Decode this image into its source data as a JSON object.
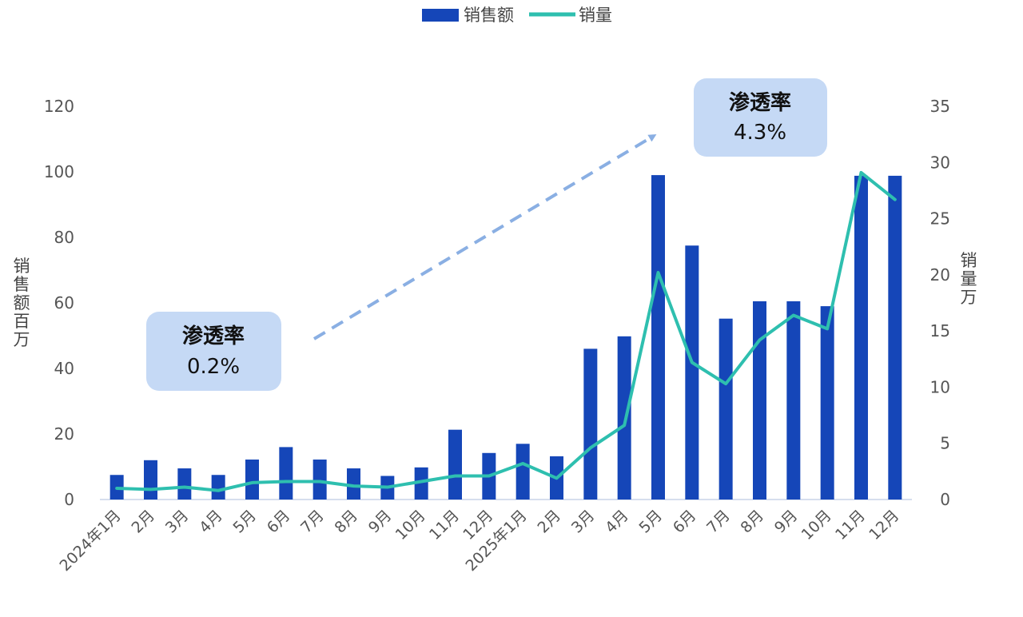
{
  "chart_data": {
    "type": "bar",
    "categories": [
      "2024年1月",
      "2月",
      "3月",
      "4月",
      "5月",
      "6月",
      "7月",
      "8月",
      "9月",
      "10月",
      "11月",
      "12月",
      "2025年1月",
      "2月",
      "3月",
      "4月",
      "5月",
      "6月",
      "7月",
      "8月",
      "9月",
      "10月",
      "11月",
      "12月"
    ],
    "series": [
      {
        "name": "销售额",
        "type": "bar",
        "axis": "left",
        "color": "#1546b8",
        "values": [
          7.5,
          12,
          9.5,
          7.5,
          12.2,
          16,
          12.2,
          9.5,
          7.2,
          9.8,
          21.3,
          14.2,
          17,
          13.2,
          46,
          49.8,
          99,
          77.5,
          55.2,
          60.5,
          60.5,
          59,
          98.8,
          98.8
        ]
      },
      {
        "name": "销量",
        "type": "line",
        "axis": "right",
        "color": "#2ebfaf",
        "values": [
          1.0,
          0.9,
          1.1,
          0.8,
          1.5,
          1.6,
          1.6,
          1.2,
          1.1,
          1.6,
          2.1,
          2.1,
          3.2,
          1.9,
          4.6,
          6.6,
          20.2,
          12.2,
          10.3,
          14.2,
          16.4,
          15.2,
          29.1,
          26.7
        ]
      }
    ],
    "y_left": {
      "label": [
        "销",
        "售",
        "额",
        "百",
        "万"
      ],
      "range": [
        0,
        120
      ],
      "ticks": [
        0,
        20,
        40,
        60,
        80,
        100,
        120
      ]
    },
    "y_right": {
      "label": [
        "销",
        "量",
        "万"
      ],
      "range": [
        0,
        35
      ],
      "ticks": [
        0,
        5,
        10,
        15,
        20,
        25,
        30,
        35
      ]
    },
    "legend": {
      "position": "top-center",
      "entries": [
        "销售额",
        "销量"
      ]
    },
    "annotations": [
      {
        "label": "渗透率",
        "value": "0.2%",
        "color": "#c5d9f5"
      },
      {
        "label": "渗透率",
        "value": "4.3%",
        "color": "#c5d9f5"
      }
    ],
    "arrow_color": "#8aafe3",
    "axis_color": "#c8d4e8"
  }
}
